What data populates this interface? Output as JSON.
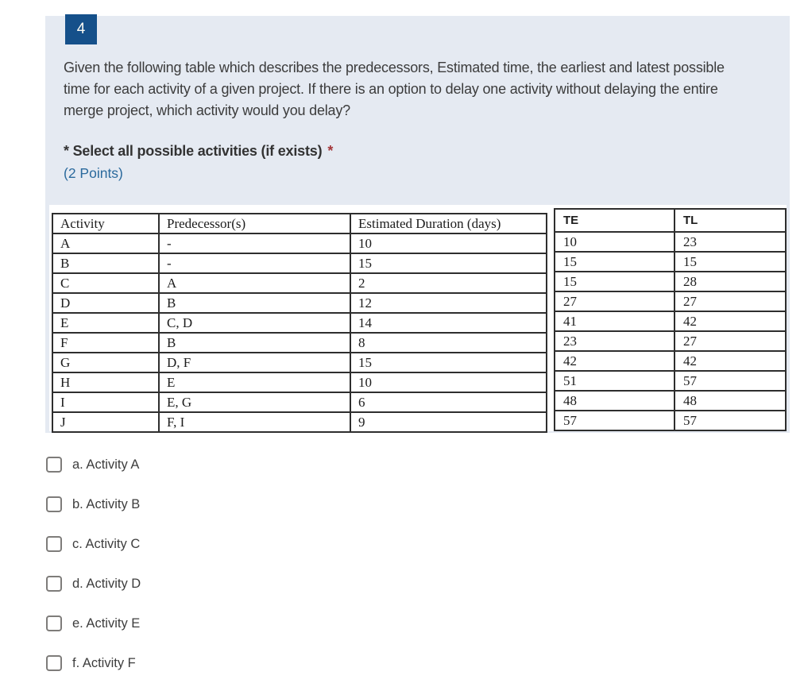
{
  "question": {
    "number": "4",
    "text": "Given the following table which describes the predecessors, Estimated time, the earliest and latest possible time for each activity of a given project. If there is an option to delay one activity without delaying the entire merge project, which activity would you delay?",
    "prompt_prefix": "*",
    "prompt": "Select all possible activities (if exists)",
    "required_marker": "*",
    "points": "(2 Points)"
  },
  "table": {
    "headers": {
      "activity": "Activity",
      "predecessors": "Predecessor(s)",
      "duration": "Estimated Duration (days)",
      "te": "TE",
      "tl": "TL"
    },
    "rows": [
      [
        "A",
        "-",
        "10",
        "10",
        "23"
      ],
      [
        "B",
        "-",
        "15",
        "15",
        "15"
      ],
      [
        "C",
        "A",
        "2",
        "15",
        "28"
      ],
      [
        "D",
        "B",
        "12",
        "27",
        "27"
      ],
      [
        "E",
        "C, D",
        "14",
        "41",
        "42"
      ],
      [
        "F",
        "B",
        "8",
        "23",
        "27"
      ],
      [
        "G",
        "D, F",
        "15",
        "42",
        "42"
      ],
      [
        "H",
        "E",
        "10",
        "51",
        "57"
      ],
      [
        "I",
        "E, G",
        "6",
        "48",
        "48"
      ],
      [
        "J",
        "F, I",
        "9",
        "57",
        "57"
      ]
    ]
  },
  "options": [
    {
      "label": "a. Activity A",
      "checked": false
    },
    {
      "label": "b. Activity B",
      "checked": false
    },
    {
      "label": "c. Activity C",
      "checked": false
    },
    {
      "label": "d. Activity D",
      "checked": false
    },
    {
      "label": "e. Activity E",
      "checked": false
    },
    {
      "label": "f. Activity F",
      "checked": false
    }
  ],
  "colors": {
    "card_background": "#e5eaf2",
    "badge_background": "#15508a",
    "badge_text": "#fbfbf4",
    "points_text": "#2b6a9d",
    "required_asterisk": "#a4373a",
    "table_border": "#2e2e2e",
    "body_text": "#3c3c3c"
  }
}
